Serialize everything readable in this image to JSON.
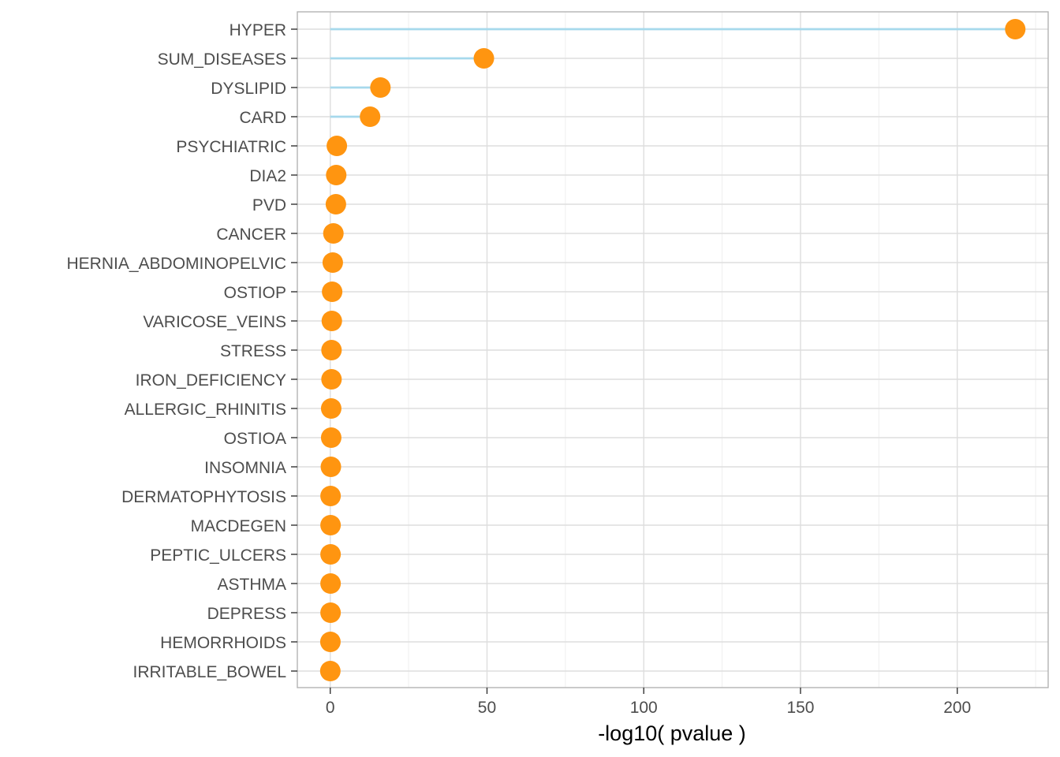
{
  "chart_data": {
    "type": "lollipop",
    "orientation": "horizontal",
    "xlabel": "-log10( pvalue )",
    "ylabel": "",
    "xlim": [
      -10.5,
      229
    ],
    "x_ticks": [
      0,
      50,
      100,
      150,
      200
    ],
    "x_minor_ticks": [
      25,
      75,
      125,
      175,
      225
    ],
    "grid": true,
    "colors": {
      "stem": "#a6d9ec",
      "point": "#ff9510",
      "grid_major": "#dedede",
      "grid_minor": "#efefef",
      "border": "#b3b3b3",
      "tick_text": "#4d4d4d"
    },
    "categories": [
      "HYPER",
      "SUM_DISEASES",
      "DYSLIPID",
      "CARD",
      "PSYCHIATRIC",
      "DIA2",
      "PVD",
      "CANCER",
      "HERNIA_ABDOMINOPELVIC",
      "OSTIOP",
      "VARICOSE_VEINS",
      "STRESS",
      "IRON_DEFICIENCY",
      "ALLERGIC_RHINITIS",
      "OSTIOA",
      "INSOMNIA",
      "DERMATOPHYTOSIS",
      "MACDEGEN",
      "PEPTIC_ULCERS",
      "ASTHMA",
      "DEPRESS",
      "HEMORRHOIDS",
      "IRRITABLE_BOWEL"
    ],
    "values": [
      218.5,
      49.0,
      16.0,
      12.7,
      2.1,
      1.9,
      1.8,
      1.0,
      0.8,
      0.6,
      0.5,
      0.4,
      0.4,
      0.3,
      0.3,
      0.2,
      0.1,
      0.1,
      0.1,
      0.1,
      0.1,
      0.05,
      0.02
    ]
  }
}
